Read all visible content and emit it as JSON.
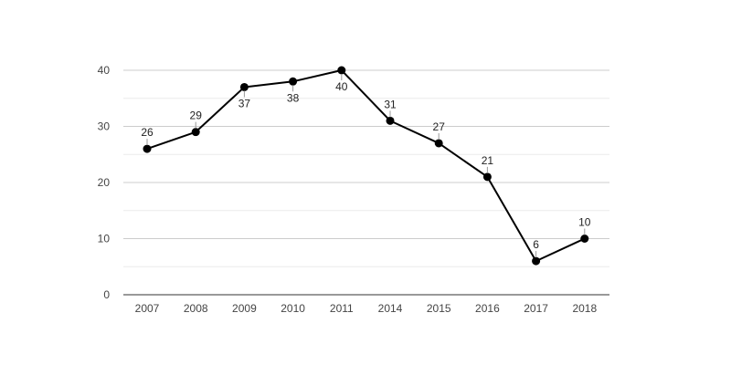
{
  "chart_data": {
    "type": "line",
    "categories": [
      "2007",
      "2008",
      "2009",
      "2010",
      "2011",
      "2014",
      "2015",
      "2016",
      "2017",
      "2018"
    ],
    "series": [
      {
        "values": [
          26,
          29,
          37,
          38,
          40,
          31,
          27,
          21,
          6,
          10
        ]
      }
    ],
    "title": "",
    "xlabel": "",
    "ylabel": "",
    "ylim": [
      0,
      40
    ],
    "yticks": [
      0,
      10,
      20,
      30,
      40
    ],
    "grid": true,
    "colors": {
      "line": "#000000",
      "major_grid": "#cccccc",
      "minor_grid": "#ebebeb",
      "axis": "#333333"
    },
    "data_labels": [
      "26",
      "29",
      "37",
      "38",
      "40",
      "31",
      "27",
      "21",
      "6",
      "10"
    ]
  }
}
